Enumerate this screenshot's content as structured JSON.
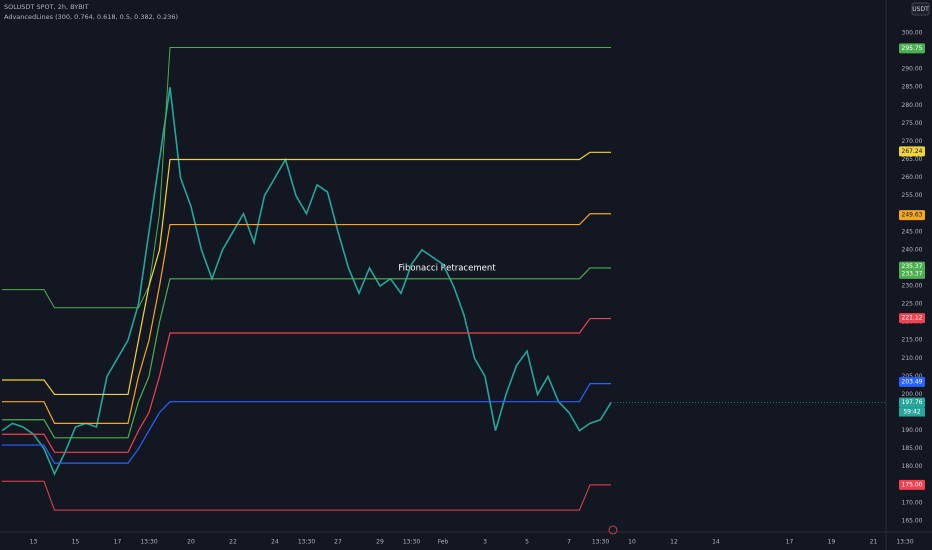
{
  "chart_data": {
    "type": "line",
    "title": "SOLUSDT SPOT, 2h, BYBIT",
    "subtitle": "AdvancedLines (300, 0.764, 0.618, 0.5, 0.382, 0.236)",
    "annotation": "Fibonacci Retracement",
    "currency": "USDT",
    "countdown": "59:42",
    "categories": [
      null,
      null,
      null,
      "13",
      null,
      null,
      null,
      "15",
      null,
      null,
      null,
      "17",
      null,
      null,
      "13:30",
      null,
      null,
      null,
      "20",
      null,
      null,
      null,
      "22",
      null,
      null,
      null,
      "24",
      null,
      null,
      "13:30",
      null,
      null,
      "27",
      null,
      null,
      null,
      "29",
      null,
      null,
      "13:30",
      null,
      null,
      "Feb",
      null,
      null,
      null,
      "3",
      null,
      null,
      null,
      "5",
      null,
      null,
      null,
      "7",
      null,
      null,
      "13:30",
      null,
      null,
      "10",
      null,
      null,
      null,
      "12",
      null,
      null,
      null,
      "14",
      null,
      null,
      null,
      null,
      null,
      null,
      "17",
      null,
      null,
      null,
      "19",
      null,
      null,
      null,
      "21",
      null,
      null,
      "13:30"
    ],
    "ylim": [
      162.5,
      303.6
    ],
    "yticks": [
      {
        "value": 165,
        "label": "165.00"
      },
      {
        "value": 170,
        "label": "170.00"
      },
      {
        "value": 175,
        "label": "175.00"
      },
      {
        "value": 180,
        "label": "180.00"
      },
      {
        "value": 185,
        "label": "185.00"
      },
      {
        "value": 190,
        "label": "190.00"
      },
      {
        "value": 195,
        "label": "195.00"
      },
      {
        "value": 200,
        "label": "200.00"
      },
      {
        "value": 205,
        "label": "205.00"
      },
      {
        "value": 210,
        "label": "210.00"
      },
      {
        "value": 215,
        "label": "215.00"
      },
      {
        "value": 220,
        "label": "220.00"
      },
      {
        "value": 225,
        "label": "225.00"
      },
      {
        "value": 230,
        "label": "230.00"
      },
      {
        "value": 235,
        "label": "235.00"
      },
      {
        "value": 240,
        "label": "240.00"
      },
      {
        "value": 245,
        "label": "245.00"
      },
      {
        "value": 250,
        "label": "250.00"
      },
      {
        "value": 255,
        "label": "255.00"
      },
      {
        "value": 260,
        "label": "260.00"
      },
      {
        "value": 265,
        "label": "265.00"
      },
      {
        "value": 270,
        "label": "270.00"
      },
      {
        "value": 275,
        "label": "275.00"
      },
      {
        "value": 280,
        "label": "280.00"
      },
      {
        "value": 285,
        "label": "285.00"
      },
      {
        "value": 290,
        "label": "290.00"
      },
      {
        "value": 295,
        "label": "295.00"
      },
      {
        "value": 300,
        "label": "300.00"
      }
    ],
    "series": [
      {
        "color": "#26a69a",
        "width": 1.6,
        "values": [
          190,
          192,
          191,
          189,
          185,
          178,
          184,
          191,
          192,
          191,
          205,
          210,
          215,
          225,
          245,
          265,
          285,
          260,
          252,
          240,
          232,
          240,
          245,
          250,
          242,
          255,
          260,
          265,
          255,
          250,
          258,
          256,
          245,
          235,
          228,
          235,
          230,
          232,
          228,
          236,
          240,
          238,
          236,
          230,
          222,
          210,
          205,
          190,
          200,
          208,
          212,
          200,
          205,
          198,
          195,
          190,
          192,
          193,
          197.76,
          null,
          null,
          null,
          null,
          null,
          null,
          null,
          null,
          null,
          null,
          null,
          null,
          null,
          null,
          null,
          null,
          null,
          null,
          null,
          null,
          null,
          null,
          null,
          null,
          null,
          null,
          null,
          null
        ]
      },
      {
        "color": "#4caf50",
        "width": 1,
        "values": [
          229,
          229,
          229,
          229,
          229,
          224,
          224,
          224,
          224,
          224,
          224,
          224,
          224,
          224,
          230,
          250,
          296,
          296,
          296,
          296,
          296,
          296,
          296,
          296,
          296,
          296,
          296,
          296,
          296,
          296,
          296,
          296,
          296,
          296,
          296,
          296,
          296,
          296,
          296,
          296,
          296,
          296,
          296,
          296,
          296,
          296,
          296,
          296,
          296,
          296,
          296,
          296,
          296,
          296,
          296,
          296,
          296,
          296,
          296,
          null,
          null,
          null,
          null,
          null,
          null,
          null,
          null,
          null,
          null,
          null,
          null,
          null,
          null,
          null,
          null,
          null,
          null,
          null,
          null,
          null,
          null,
          null,
          null,
          null,
          null,
          null,
          null
        ]
      },
      {
        "color": "#f0d43b",
        "width": 1.2,
        "values": [
          204,
          204,
          204,
          204,
          204,
          200,
          200,
          200,
          200,
          200,
          200,
          200,
          200,
          215,
          230,
          240,
          265,
          265,
          265,
          265,
          265,
          265,
          265,
          265,
          265,
          265,
          265,
          265,
          265,
          265,
          265,
          265,
          265,
          265,
          265,
          265,
          265,
          265,
          265,
          265,
          265,
          265,
          265,
          265,
          265,
          265,
          265,
          265,
          265,
          265,
          265,
          265,
          265,
          265,
          265,
          265,
          267,
          267,
          267,
          null,
          null,
          null,
          null,
          null,
          null,
          null,
          null,
          null,
          null,
          null,
          null,
          null,
          null,
          null,
          null,
          null,
          null,
          null,
          null,
          null,
          null,
          null,
          null,
          null,
          null,
          null,
          null
        ]
      },
      {
        "color": "#f5a623",
        "width": 1.2,
        "values": [
          198,
          198,
          198,
          198,
          198,
          192,
          192,
          192,
          192,
          192,
          192,
          192,
          192,
          205,
          215,
          230,
          247,
          247,
          247,
          247,
          247,
          247,
          247,
          247,
          247,
          247,
          247,
          247,
          247,
          247,
          247,
          247,
          247,
          247,
          247,
          247,
          247,
          247,
          247,
          247,
          247,
          247,
          247,
          247,
          247,
          247,
          247,
          247,
          247,
          247,
          247,
          247,
          247,
          247,
          247,
          247,
          250,
          250,
          250,
          null,
          null,
          null,
          null,
          null,
          null,
          null,
          null,
          null,
          null,
          null,
          null,
          null,
          null,
          null,
          null,
          null,
          null,
          null,
          null,
          null,
          null,
          null,
          null,
          null,
          null,
          null,
          null
        ]
      },
      {
        "color": "#4caf50",
        "width": 1.2,
        "values": [
          193,
          193,
          193,
          193,
          193,
          188,
          188,
          188,
          188,
          188,
          188,
          188,
          188,
          198,
          205,
          220,
          232,
          232,
          232,
          232,
          232,
          232,
          232,
          232,
          232,
          232,
          232,
          232,
          232,
          232,
          232,
          232,
          232,
          232,
          232,
          232,
          232,
          232,
          232,
          232,
          232,
          232,
          232,
          232,
          232,
          232,
          232,
          232,
          232,
          232,
          232,
          232,
          232,
          232,
          232,
          232,
          235,
          235,
          235,
          null,
          null,
          null,
          null,
          null,
          null,
          null,
          null,
          null,
          null,
          null,
          null,
          null,
          null,
          null,
          null,
          null,
          null,
          null,
          null,
          null,
          null,
          null,
          null,
          null,
          null,
          null,
          null
        ]
      },
      {
        "color": "#f0424f",
        "width": 1.2,
        "values": [
          189,
          189,
          189,
          189,
          189,
          184,
          184,
          184,
          184,
          184,
          184,
          184,
          184,
          190,
          195,
          205,
          217,
          217,
          217,
          217,
          217,
          217,
          217,
          217,
          217,
          217,
          217,
          217,
          217,
          217,
          217,
          217,
          217,
          217,
          217,
          217,
          217,
          217,
          217,
          217,
          217,
          217,
          217,
          217,
          217,
          217,
          217,
          217,
          217,
          217,
          217,
          217,
          217,
          217,
          217,
          217,
          221,
          221,
          221,
          null,
          null,
          null,
          null,
          null,
          null,
          null,
          null,
          null,
          null,
          null,
          null,
          null,
          null,
          null,
          null,
          null,
          null,
          null,
          null,
          null,
          null,
          null,
          null,
          null,
          null,
          null,
          null
        ]
      },
      {
        "color": "#2962ff",
        "width": 1.2,
        "values": [
          186,
          186,
          186,
          186,
          186,
          181,
          181,
          181,
          181,
          181,
          181,
          181,
          181,
          185,
          190,
          195,
          198,
          198,
          198,
          198,
          198,
          198,
          198,
          198,
          198,
          198,
          198,
          198,
          198,
          198,
          198,
          198,
          198,
          198,
          198,
          198,
          198,
          198,
          198,
          198,
          198,
          198,
          198,
          198,
          198,
          198,
          198,
          198,
          198,
          198,
          198,
          198,
          198,
          198,
          198,
          198,
          203,
          203,
          203,
          null,
          null,
          null,
          null,
          null,
          null,
          null,
          null,
          null,
          null,
          null,
          null,
          null,
          null,
          null,
          null,
          null,
          null,
          null,
          null,
          null,
          null,
          null,
          null,
          null,
          null,
          null,
          null
        ]
      },
      {
        "color": "#f0424f",
        "width": 1,
        "values": [
          176,
          176,
          176,
          176,
          176,
          168,
          168,
          168,
          168,
          168,
          168,
          168,
          168,
          168,
          168,
          168,
          168,
          168,
          168,
          168,
          168,
          168,
          168,
          168,
          168,
          168,
          168,
          168,
          168,
          168,
          168,
          168,
          168,
          168,
          168,
          168,
          168,
          168,
          168,
          168,
          168,
          168,
          168,
          168,
          168,
          168,
          168,
          168,
          168,
          168,
          168,
          168,
          168,
          168,
          168,
          168,
          175,
          175,
          175,
          null,
          null,
          null,
          null,
          null,
          null,
          null,
          null,
          null,
          null,
          null,
          null,
          null,
          null,
          null,
          null,
          null,
          null,
          null,
          null,
          null,
          null,
          null,
          null,
          null,
          null,
          null,
          null
        ]
      }
    ],
    "markers": [
      {
        "value": 295.75,
        "label": "295.75",
        "color": "#4caf50"
      },
      {
        "value": 267.24,
        "label": "267.24",
        "color": "#f0d43b"
      },
      {
        "value": 249.63,
        "label": "249.63",
        "color": "#f5a623"
      },
      {
        "value": 235.37,
        "label": "235.37",
        "color": "#4caf50"
      },
      {
        "value": 233.37,
        "label": "233.37",
        "color": "#4caf50"
      },
      {
        "value": 221.12,
        "label": "221.12",
        "color": "#f0424f"
      },
      {
        "value": 203.49,
        "label": "203.49",
        "color": "#2962ff"
      },
      {
        "value": 197.76,
        "label": "197.76",
        "color": "#26a69a"
      },
      {
        "value": 175.0,
        "label": "175.00",
        "color": "#f0424f"
      }
    ]
  }
}
